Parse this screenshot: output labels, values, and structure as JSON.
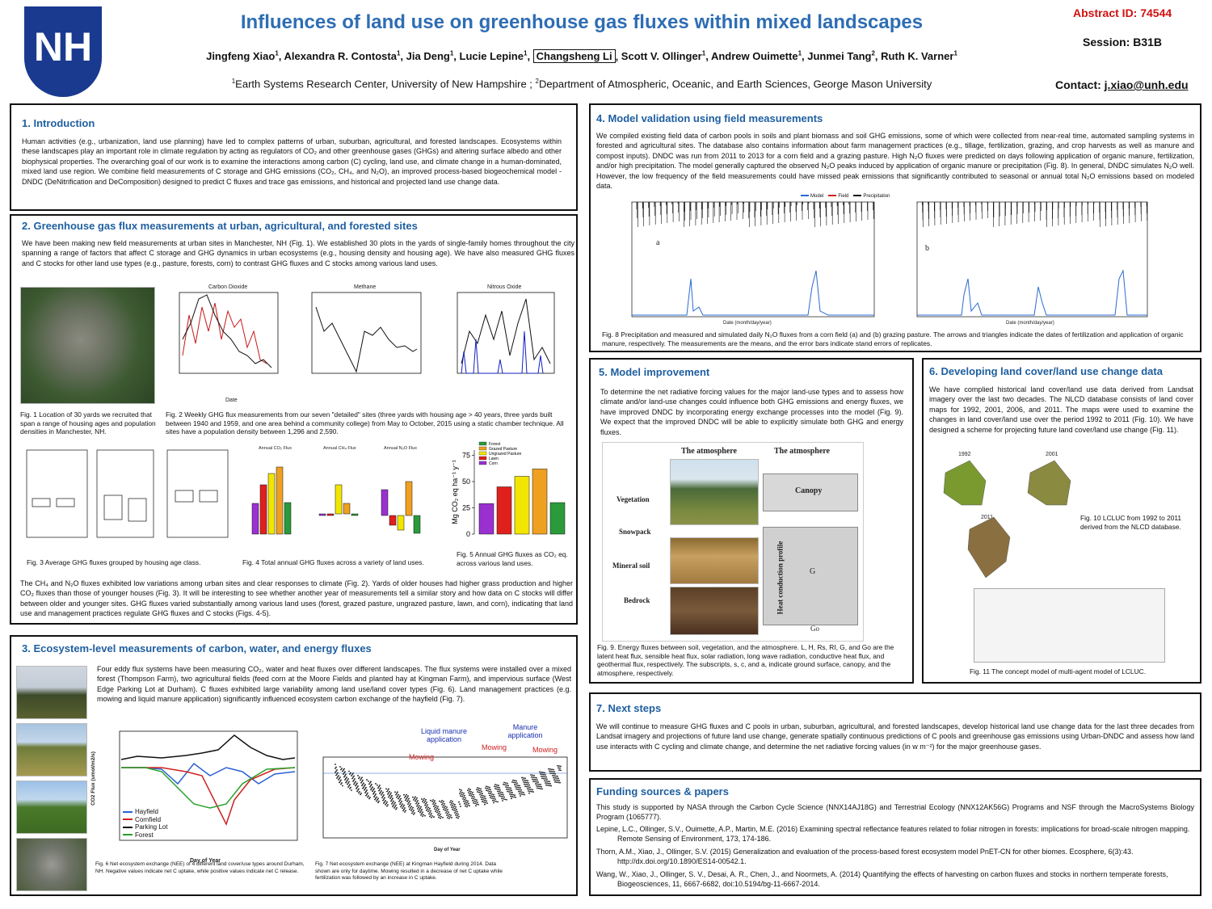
{
  "header": {
    "logo": "NH",
    "title": "Influences of land use on greenhouse gas fluxes within mixed landscapes",
    "authors": [
      {
        "name": "Jingfeng Xiao",
        "aff": "1"
      },
      {
        "name": "Alexandra R. Contosta",
        "aff": "1"
      },
      {
        "name": "Jia Deng",
        "aff": "1"
      },
      {
        "name": "Lucie Lepine",
        "aff": "1"
      },
      {
        "name": "Changsheng Li",
        "aff": ""
      },
      {
        "name": "Scott V. Ollinger",
        "aff": "1"
      },
      {
        "name": "Andrew Ouimette",
        "aff": "1"
      },
      {
        "name": "Junmei Tang",
        "aff": "2"
      },
      {
        "name": "Ruth K. Varner",
        "aff": "1"
      }
    ],
    "affiliations": [
      {
        "mark": "1",
        "text": "Earth Systems Research Center, University of New Hampshire ;"
      },
      {
        "mark": "2",
        "text": "Department of Atmospheric, Oceanic, and Earth Sciences, George Mason University"
      }
    ],
    "abstract_id": "Abstract ID: 74544",
    "session": "Session: B31B",
    "contact_label": "Contact:",
    "contact_email": "j.xiao@unh.edu"
  },
  "s1": {
    "title": "1. Introduction",
    "text": "Human activities (e.g., urbanization, land use planning) have led to complex patterns of urban, suburban, agricultural, and forested landscapes. Ecosystems within these landscapes play an important role in climate regulation by acting as regulators of CO₂ and other greenhouse gases (GHGs) and altering surface albedo and other biophysical properties. The overarching goal of our work is to examine the interactions among carbon (C) cycling, land use, and climate change in a human-dominated, mixed land use region. We combine field measurements of C storage and GHG emissions (CO₂, CH₄, and N₂O), an improved process-based biogeochemical model - DNDC (DeNitrification and DeComposition) designed to predict C fluxes and trace gas emissions, and historical and projected land use change data."
  },
  "s2": {
    "title": "2. Greenhouse gas flux measurements at urban, agricultural, and forested sites",
    "text1": "We have been making new field measurements at urban sites in Manchester, NH (Fig. 1). We established 30 plots in the yards of single-family homes throughout the city spanning a range of factors that affect C storage and GHG dynamics in urban ecosystems (e.g., housing density and housing age). We have also measured GHG fluxes and C stocks for other land use types (e.g., pasture, forests, corn) to contrast GHG fluxes and C stocks among various land uses.",
    "fig2_titles": [
      "Carbon Dioxide",
      "Methane",
      "Nitrous Oxide"
    ],
    "fig2_xlabel": "Date",
    "fig4_titles": [
      "Annual CO₂ Flux",
      "Annual CH₄ Flux",
      "Annual N₂O Flux"
    ],
    "fig1_caption": "Fig. 1 Location of 30 yards we recruited that span a range of housing ages and population densities in Manchester, NH.",
    "fig2_caption": "Fig. 2 Weekly GHG flux measurements from our seven \"detailed\" sites (three yards with housing age > 40 years, three yards built between 1940 and 1959, and one area behind a community college) from May to October, 2015 using a static chamber technique. All sites have a population density between 1,296 and 2,590.",
    "fig3_caption": "Fig. 3 Average GHG fluxes grouped by housing age class.",
    "fig4_caption": "Fig. 4 Total annual GHG fluxes across a variety of land uses.",
    "fig5_caption": "Fig. 5 Annual GHG fluxes as CO₂ eq. across various land uses.",
    "fig5": {
      "type": "bar",
      "ylabel": "Mg CO₂ eq ha⁻¹ y⁻¹",
      "categories": [
        "Corn",
        "Lawn",
        "Ungrazed Pasture",
        "Grazed Pasture",
        "Forest"
      ],
      "colors": [
        "#9b30d0",
        "#e0201c",
        "#f2e600",
        "#f0a020",
        "#2a9a3a"
      ],
      "values": [
        29,
        45,
        55,
        62,
        30
      ],
      "ylim": [
        0,
        80
      ],
      "yticks": [
        0,
        25,
        50,
        75
      ]
    },
    "text2": "The CH₄ and N₂O fluxes exhibited low variations among urban sites and clear responses to climate (Fig. 2). Yards of older houses had higher grass production and higher CO₂ fluxes than those of younger houses (Fig. 3). It will be interesting to see whether another year of measurements tell a similar story and how data on C stocks will differ between older and younger sites. GHG fluxes varied substantially among various land uses (forest, grazed pasture, ungrazed pasture, lawn, and corn), indicating that land use and management practices regulate GHG fluxes and C stocks (Figs. 4-5)."
  },
  "s3": {
    "title": "3. Ecosystem-level measurements of carbon, water, and energy fluxes",
    "text": "Four eddy flux systems have been measuring CO₂, water and heat fluxes over different landscapes. The flux systems were installed over a mixed forest (Thompson Farm), two agricultural fields (feed corn at the Moore Fields and planted hay at Kingman Farm), and impervious surface (West Edge Parking Lot at Durham). C fluxes exhibited large variability among land use/land cover types (Fig. 6). Land management practices (e.g. mowing and liquid manure application) significantly influenced ecosystem carbon exchange of the hayfield (Fig. 7).",
    "fig6_legend": [
      "Hayfield",
      "Cornfield",
      "Parking Lot",
      "Forest"
    ],
    "fig6_xlabel": "Day of Year",
    "fig6_ylabel": "CO2 Flux (umol/m2/s)",
    "fig7_xlabel": "Day of Year",
    "fig7_notes": [
      "Liquid manure application",
      "Manure application",
      "Mowing",
      "Mowing",
      "Mowing"
    ],
    "fig6_caption": "Fig. 6 Net ecosystem exchange (NEE) of 4 different land cover/use types around Durham, NH. Negative values indicate net C uptake, while positive values indicate net C release.",
    "fig7_caption": "Fig. 7 Net ecosystem exchange (NEE) at Kingman Hayfield during 2014. Data shown are only for daytime. Mowing resulted in a decrease of net C uptake while fertilization was followed by an increase in C uptake."
  },
  "s4": {
    "title": "4. Model validation using field measurements",
    "text": "We compiled existing field data of carbon pools in soils and plant biomass and soil GHG emissions, some of which were collected from near-real time, automated sampling systems in forested and agricultural sites. The database also contains information about farm management practices (e.g., tillage, fertilization, grazing, and crop harvests as well as manure and compost inputs). DNDC was run from 2011 to 2013 for a corn field and a grazing pasture. High N₂O fluxes were predicted on days following application of organic manure, fertilization, and/or high precipitation. The model generally captured the observed N₂O peaks induced by application of organic manure or precipitation (Fig. 8). In general, DNDC simulates N₂O well. However, the low frequency of the field measurements could have missed peak emissions that significantly contributed to seasonal or annual total N₂O emissions based on modeled data.",
    "fig8_legend": [
      "Model",
      "Field",
      "Precipitation"
    ],
    "fig8_panels": [
      "a",
      "b"
    ],
    "fig8_xlabel": "Date (month/day/year)",
    "fig8_caption": "Fig. 8 Precipitation and measured and simulated daily N₂O fluxes from a corn field (a) and (b) grazing pasture. The arrows and triangles indicate the dates of fertilization and application of organic manure, respectively. The measurements are the means, and the error bars indicate stand errors of replicates."
  },
  "s5": {
    "title": "5. Model improvement",
    "text": "To determine the net radiative forcing values for the major land-use types and to assess how climate and/or land-use changes could influence both GHG emissions and energy fluxes, we have improved DNDC by incorporating energy exchange processes into the model (Fig. 9). We expect that the improved DNDC will be able to explicitly simulate both GHG and energy fluxes.",
    "fig9_heads": [
      "The atmosphere",
      "The atmosphere"
    ],
    "fig9_layers": [
      "Vegetation",
      "Snowpack",
      "Mineral soil",
      "Bedrock"
    ],
    "fig9_canopy": "Canopy",
    "fig9_profile": "Heat conduction profile",
    "fig9_g": "G",
    "fig9_go": "Go",
    "fig9_caption": "Fig. 9. Energy fluxes between soil, vegetation, and the atmosphere. L, H, Rs, RI, G, and Go are the latent heat flux, sensible heat flux, solar radiation, long wave radiation, conductive heat flux, and geothermal flux, respectively. The subscripts, s, c, and a, indicate ground surface, canopy, and the atmosphere, respectively."
  },
  "s6": {
    "title": "6. Developing land cover/land use change data",
    "text": "We have complied historical land cover/land use data derived from Landsat imagery over the last two decades. The NLCD database consists of land cover maps for 1992, 2001, 2006, and 2011. The maps were used to examine the changes in land cover/land use over the period 1992 to 2011 (Fig. 10). We have designed a scheme for projecting future land cover/land use change (Fig. 11).",
    "map_years": [
      "1992",
      "2001",
      "2011"
    ],
    "fig10_caption": "Fig. 10 LCLUC from 1992 to 2011 derived from the NLCD database.",
    "fig11_caption": "Fig. 11 The concept model of multi-agent model of LCLUC."
  },
  "s7": {
    "title": "7. Next steps",
    "text": "We will continue to measure GHG fluxes and C pools in urban, suburban, agricultural, and forested landscapes, develop historical land use change data for the last three decades from Landsat imagery and projections of future land use change, generate spatially continuous predictions of C pools and greenhouse gas emissions using Urban-DNDC and assess how land use interacts with C cycling and climate change, and determine the net radiative forcing values (in w m⁻²) for the major greenhouse gases."
  },
  "funding": {
    "title": "Funding sources & papers",
    "text": "This study is supported by NASA through the Carbon Cycle Science (NNX14AJ18G) and Terrestrial Ecology (NNX12AK56G) Programs and NSF through the MacroSystems Biology Program (1065777).",
    "refs": [
      "Lepine, L.C., Ollinger, S.V., Ouimette, A.P., Martin, M.E. (2016) Examining spectral reflectance features related to foliar nitrogen in forests: implications for broad-scale nitrogen mapping. Remote Sensing of Environment, 173, 174-186.",
      "Thorn, A.M., Xiao, J., Ollinger, S.V. (2015) Generalization and evaluation of the process-based forest ecosystem model PnET-CN for other biomes. Ecosphere, 6(3):43. http://dx.doi.org/10.1890/ES14-00542.1.",
      "Wang, W., Xiao, J., Ollinger, S. V., Desai, A. R., Chen, J., and Noormets, A. (2014) Quantifying the effects of harvesting on carbon fluxes and stocks in northern temperate forests, Biogeosciences, 11, 6667-6682, doi:10.5194/bg-11-6667-2014."
    ]
  }
}
